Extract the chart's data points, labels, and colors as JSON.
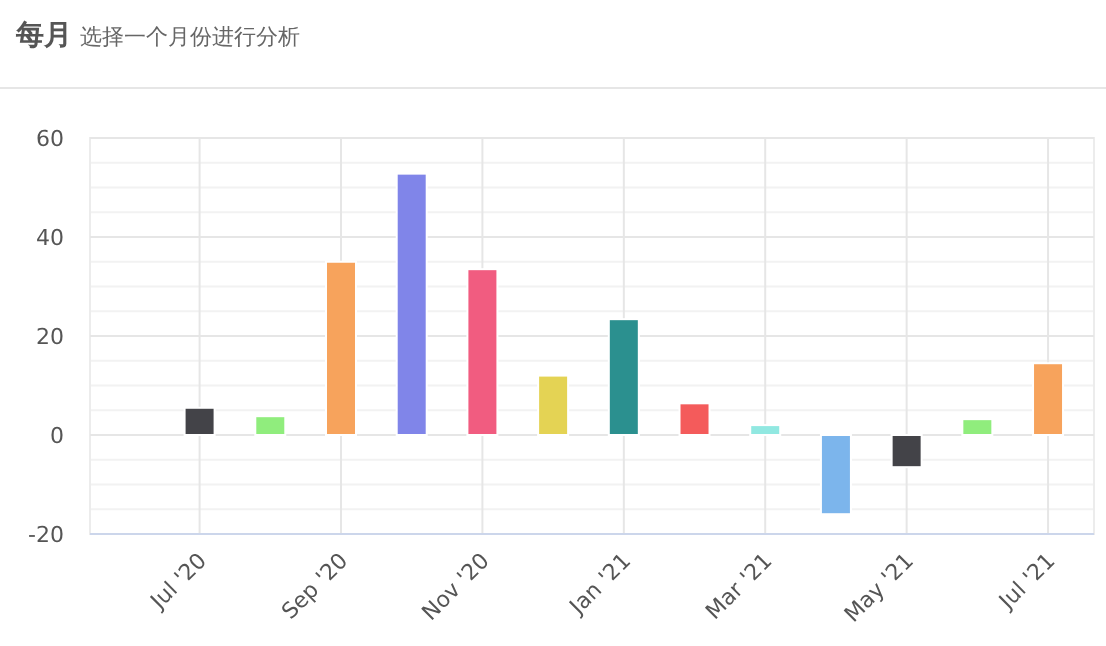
{
  "chart_data": {
    "type": "bar",
    "title": "每月",
    "subtitle": "选择一个月份进行分析",
    "categories": [
      "Jul '20",
      null,
      "Sep '20",
      null,
      "Nov '20",
      null,
      "Jan '21",
      null,
      "Mar '21",
      null,
      "May '21",
      null,
      "Jul '21"
    ],
    "values": [
      5.5,
      3.8,
      35,
      52.8,
      33.5,
      12,
      23.4,
      6.4,
      2,
      -16,
      -6.5,
      3.2,
      14.5
    ],
    "colors": [
      "#434348",
      "#90ed7d",
      "#f7a35c",
      "#8085e9",
      "#f15c80",
      "#e4d354",
      "#2b908f",
      "#f45b5b",
      "#91e8e1",
      "#7cb5ec",
      "#434348",
      "#90ed7d",
      "#f7a35c"
    ],
    "ylim": [
      -20,
      60
    ],
    "yticks": [
      -20,
      0,
      20,
      40,
      60
    ],
    "grid": true
  }
}
